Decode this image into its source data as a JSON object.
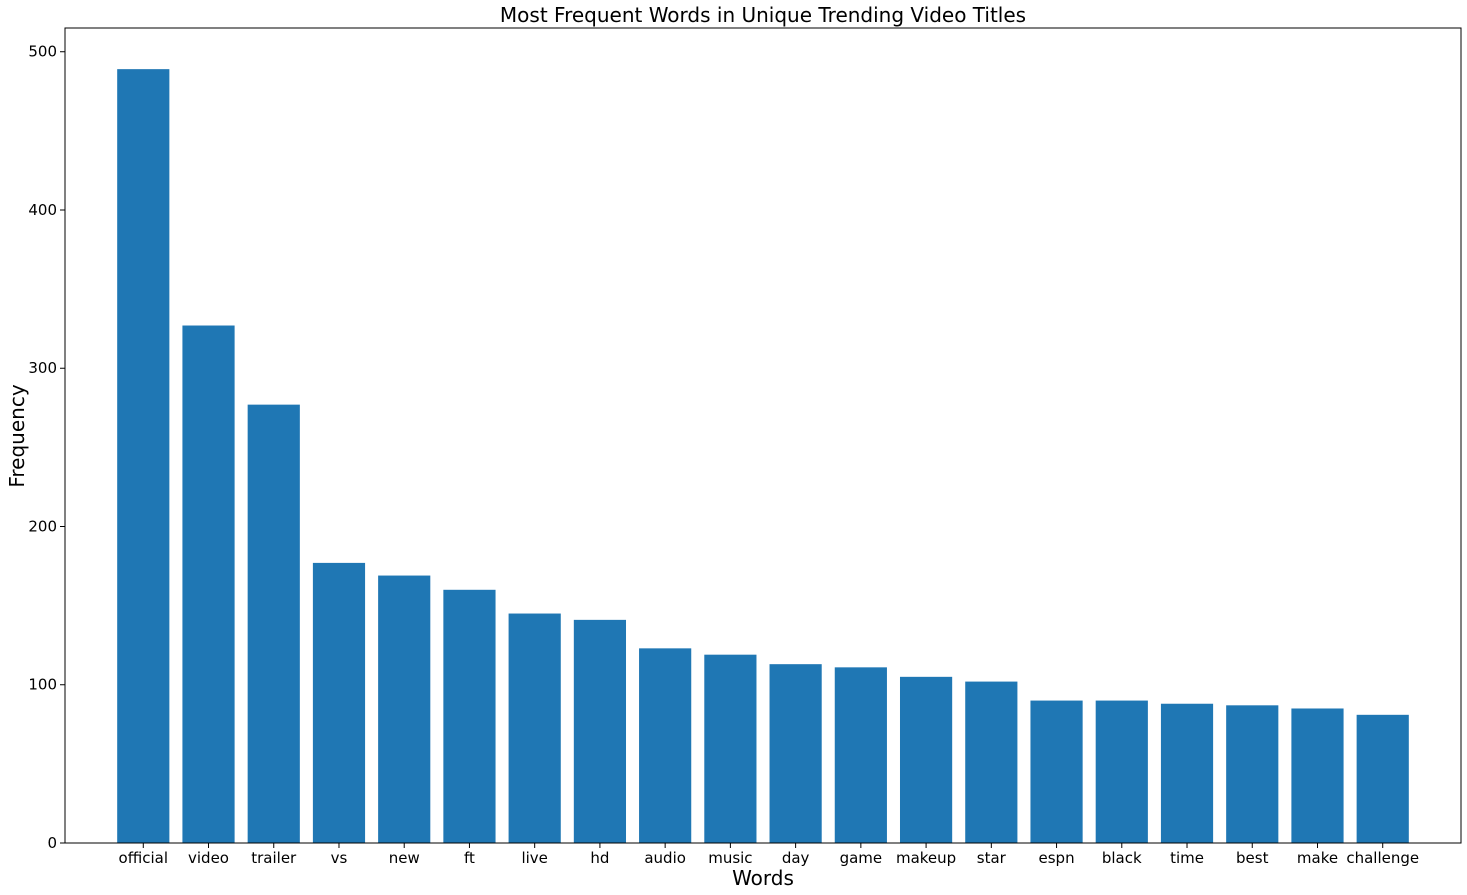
{
  "chart_data": {
    "type": "bar",
    "title": "Most Frequent Words in Unique Trending Video Titles",
    "xlabel": "Words",
    "ylabel": "Frequency",
    "ylim": [
      0,
      515
    ],
    "yticks": [
      0,
      100,
      200,
      300,
      400,
      500
    ],
    "grid": false,
    "categories": [
      "official",
      "video",
      "trailer",
      "vs",
      "new",
      "ft",
      "live",
      "hd",
      "audio",
      "music",
      "day",
      "game",
      "makeup",
      "star",
      "espn",
      "black",
      "time",
      "best",
      "make",
      "challenge"
    ],
    "values": [
      489,
      327,
      277,
      177,
      169,
      160,
      145,
      141,
      123,
      119,
      113,
      111,
      105,
      102,
      90,
      90,
      88,
      87,
      85,
      81
    ],
    "colors": {
      "bar": "#1f77b4",
      "axis": "#000000"
    }
  }
}
